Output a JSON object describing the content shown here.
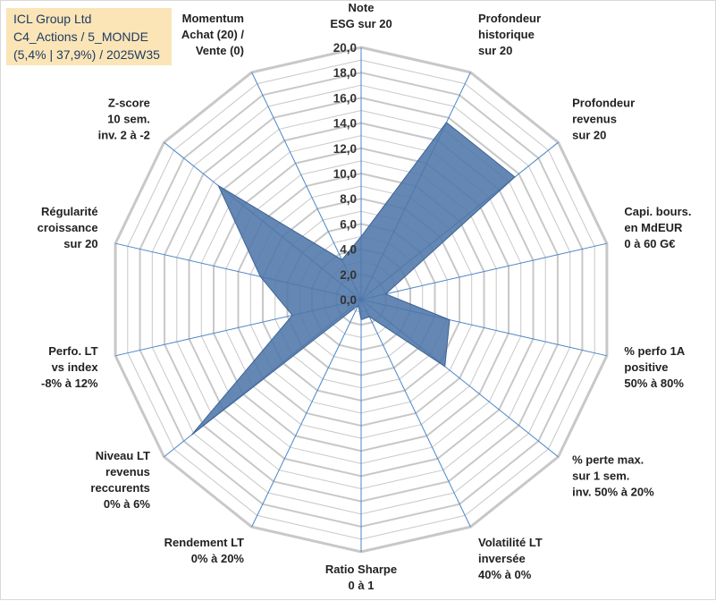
{
  "chart_data": {
    "type": "radar",
    "title_lines": [
      "ICL Group Ltd",
      "C4_Actions / 5_MONDE",
      "(5,4% | 37,9%) / 2025W35"
    ],
    "rlim": [
      0,
      20
    ],
    "ticks": [
      "0,0",
      "2,0",
      "4,0",
      "6,0",
      "8,0",
      "10,0",
      "12,0",
      "14,0",
      "16,0",
      "18,0",
      "20,0"
    ],
    "grid": true,
    "axes": [
      {
        "label": [
          "Note",
          "ESG sur 20"
        ]
      },
      {
        "label": [
          "Profondeur",
          "historique",
          "sur 20"
        ]
      },
      {
        "label": [
          "Profondeur",
          "revenus",
          "sur 20"
        ]
      },
      {
        "label": [
          "Capi. bours.",
          "en MdEUR",
          "0 à 60 G€"
        ]
      },
      {
        "label": [
          "% perfo 1A",
          "positive",
          "50% à 80%"
        ]
      },
      {
        "label": [
          "% perte max.",
          "sur 1 sem.",
          "inv. 50% à 20%"
        ]
      },
      {
        "label": [
          "Volatilité LT",
          "inversée",
          "40% à 0%"
        ]
      },
      {
        "label": [
          "Ratio Sharpe",
          "0 à 1"
        ]
      },
      {
        "label": [
          "Rendement LT",
          "0% à 20%"
        ]
      },
      {
        "label": [
          "Niveau LT",
          "revenus",
          "reccurents",
          "0% à 6%"
        ]
      },
      {
        "label": [
          "Perfo. LT",
          "vs index",
          "-8% à 12%"
        ]
      },
      {
        "label": [
          "Régularité",
          "croissance",
          "sur 20"
        ]
      },
      {
        "label": [
          "Z-score",
          "10 sem.",
          "inv. 2 à -2"
        ]
      },
      {
        "label": [
          "Momentum",
          "Achat (20) /",
          "Vente (0)"
        ]
      }
    ],
    "series": [
      {
        "values": [
          5.0,
          15.6,
          15.6,
          2.0,
          7.2,
          8.5,
          1.5,
          1.6,
          0.5,
          17.2,
          5.6,
          8.2,
          14.5,
          3.5
        ]
      }
    ],
    "colors": {
      "fill": "#4f76a8",
      "stroke": "#3e6396",
      "grid": "#c8c8c8",
      "spoke": "#4a86c8"
    }
  }
}
